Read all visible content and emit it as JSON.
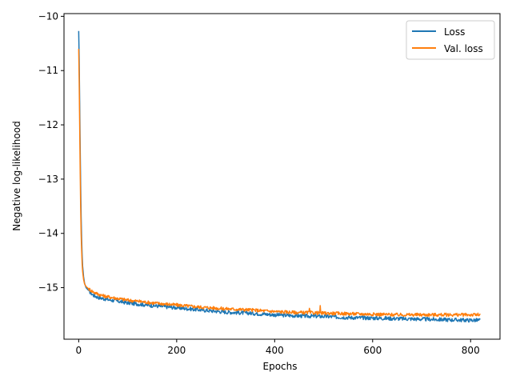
{
  "chart_data": {
    "type": "line",
    "title": "",
    "xlabel": "Epochs",
    "ylabel": "Negative log-likelihood",
    "xlim": [
      -30,
      860
    ],
    "ylim": [
      -15.95,
      -9.95
    ],
    "xticks": [
      0,
      200,
      400,
      600,
      800
    ],
    "yticks": [
      -10,
      -11,
      -12,
      -13,
      -14,
      -15
    ],
    "tick_labels": {
      "x": [
        "0",
        "200",
        "400",
        "600",
        "800"
      ],
      "y": [
        "−10",
        "−11",
        "−12",
        "−13",
        "−14",
        "−15"
      ]
    },
    "grid": false,
    "legend": "top-right",
    "series": [
      {
        "name": "Loss",
        "color": "#1f77b4",
        "x": [
          0,
          1,
          2,
          3,
          4,
          5,
          6,
          7,
          8,
          10,
          12,
          15,
          20,
          25,
          30,
          40,
          50,
          60,
          80,
          100,
          150,
          200,
          250,
          300,
          350,
          400,
          450,
          500,
          550,
          600,
          650,
          700,
          750,
          800,
          820
        ],
        "y": [
          -10.27,
          -10.8,
          -11.6,
          -12.4,
          -13.1,
          -13.7,
          -14.1,
          -14.4,
          -14.6,
          -14.8,
          -14.92,
          -15.0,
          -15.05,
          -15.1,
          -15.14,
          -15.18,
          -15.2,
          -15.22,
          -15.25,
          -15.28,
          -15.33,
          -15.37,
          -15.41,
          -15.45,
          -15.47,
          -15.5,
          -15.52,
          -15.53,
          -15.55,
          -15.56,
          -15.57,
          -15.58,
          -15.59,
          -15.6,
          -15.6
        ]
      },
      {
        "name": "Val. loss",
        "color": "#ff7f0e",
        "x": [
          0,
          1,
          2,
          3,
          4,
          5,
          6,
          7,
          8,
          10,
          12,
          15,
          20,
          25,
          30,
          40,
          50,
          60,
          80,
          100,
          150,
          200,
          250,
          300,
          350,
          400,
          450,
          470,
          471,
          472,
          500,
          550,
          600,
          650,
          700,
          750,
          800,
          820
        ],
        "y": [
          -10.6,
          -11.2,
          -12.0,
          -12.8,
          -13.5,
          -14.0,
          -14.3,
          -14.55,
          -14.7,
          -14.85,
          -14.93,
          -14.98,
          -15.02,
          -15.05,
          -15.08,
          -15.12,
          -15.15,
          -15.17,
          -15.2,
          -15.23,
          -15.28,
          -15.32,
          -15.36,
          -15.39,
          -15.41,
          -15.44,
          -15.46,
          -15.46,
          -15.38,
          -15.46,
          -15.47,
          -15.48,
          -15.49,
          -15.5,
          -15.5,
          -15.5,
          -15.5,
          -15.5
        ]
      }
    ],
    "spikes": [
      {
        "series": "Val. loss",
        "x": 493,
        "y": -15.33
      }
    ]
  }
}
